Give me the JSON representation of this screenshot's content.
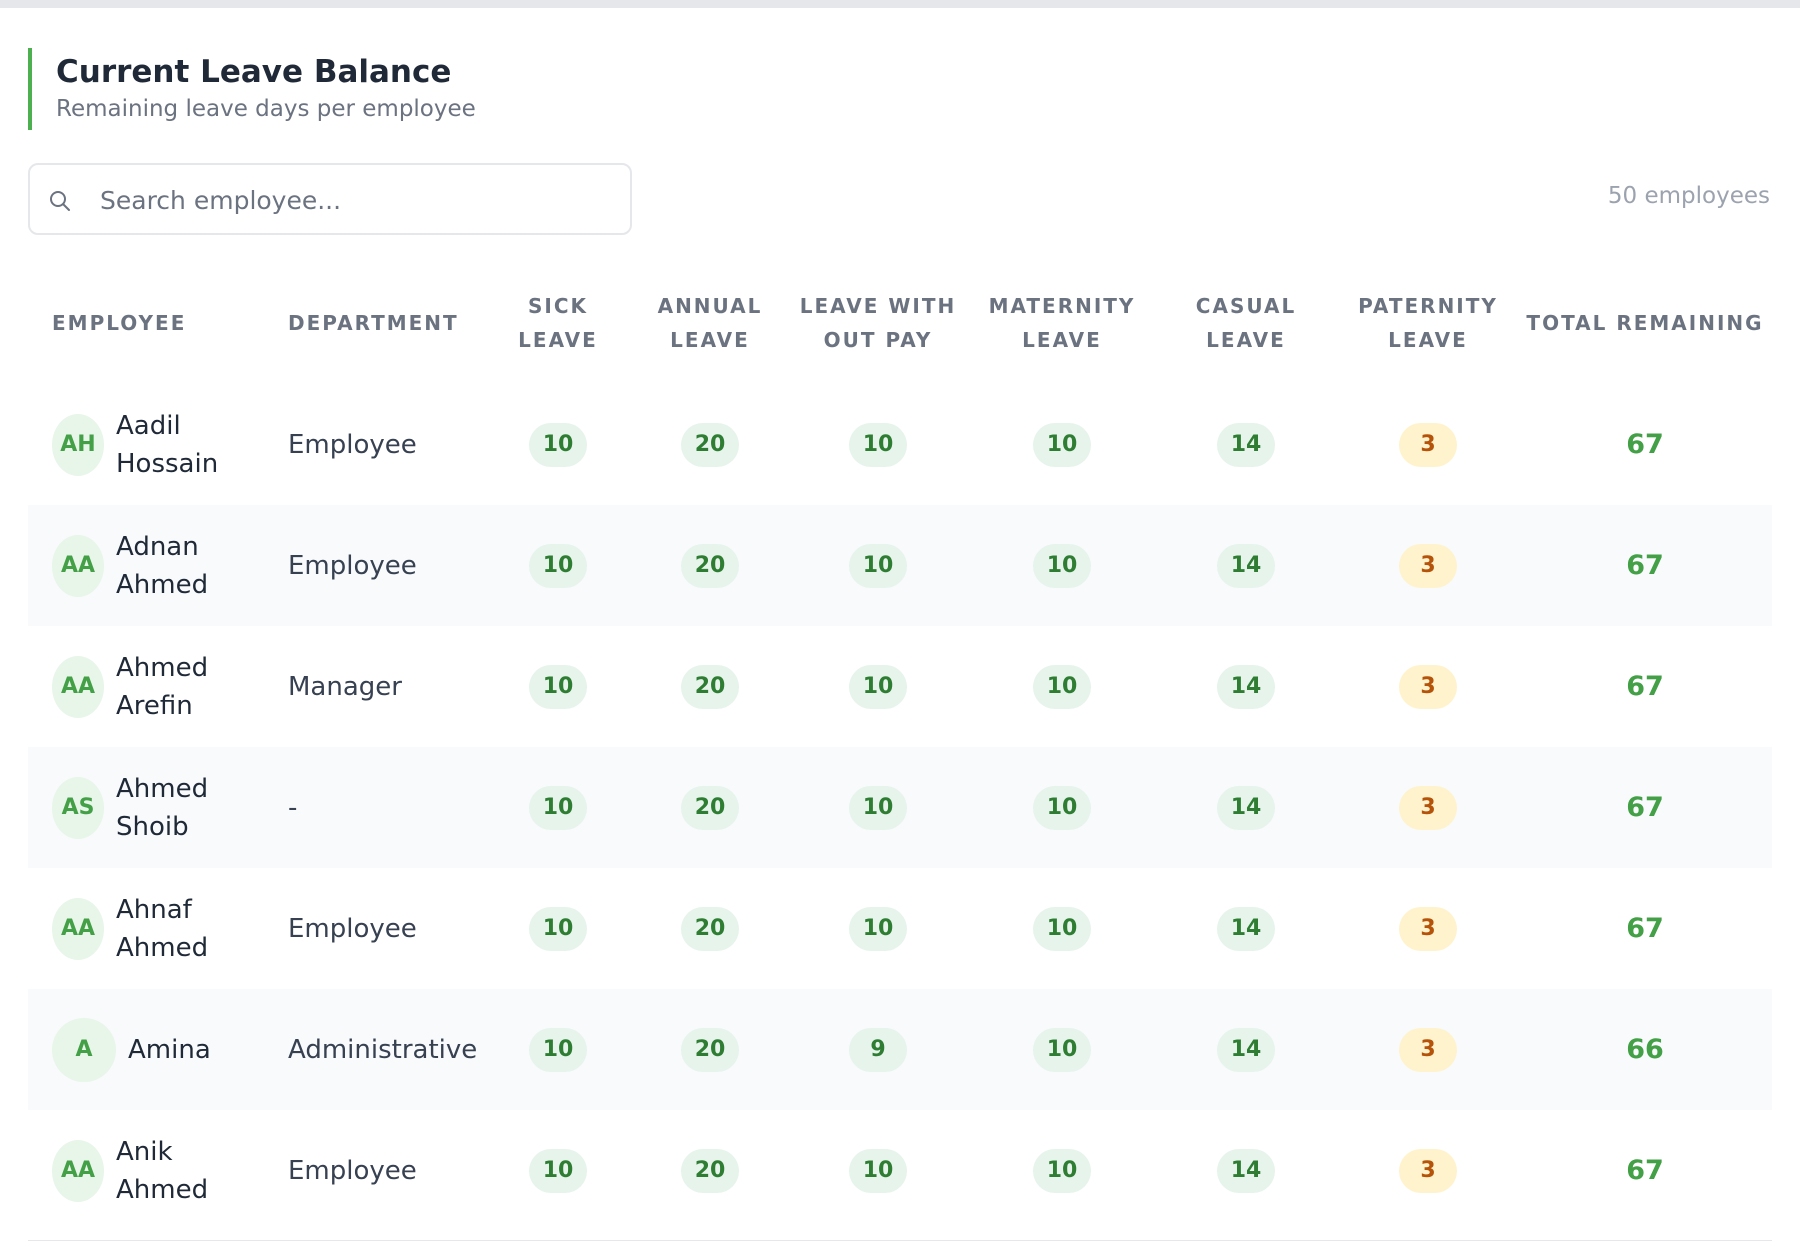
{
  "header": {
    "title": "Current Leave Balance",
    "subtitle": "Remaining leave days per employee"
  },
  "search": {
    "placeholder": "Search employee...",
    "value": ""
  },
  "employee_count": "50 employees",
  "colors": {
    "accent": "#4caf50",
    "pill_bg": "#e6f4ec",
    "pill_text": "#2e7d32",
    "warn_bg": "#fff3cd",
    "warn_text": "#b45309",
    "total_text": "#43a047"
  },
  "table": {
    "columns": [
      "EMPLOYEE",
      "DEPARTMENT",
      "SICK LEAVE",
      "ANNUAL LEAVE",
      "LEAVE WITH OUT PAY",
      "MATERNITY LEAVE",
      "CASUAL LEAVE",
      "PATERNITY LEAVE",
      "TOTAL REMAINING"
    ],
    "rows": [
      {
        "initials": "AH",
        "name": "Aadil Hossain",
        "department": "Employee",
        "sick": "10",
        "annual": "20",
        "lwop": "10",
        "maternity": "10",
        "casual": "14",
        "paternity": "3",
        "total": "67"
      },
      {
        "initials": "AA",
        "name": "Adnan Ahmed",
        "department": "Employee",
        "sick": "10",
        "annual": "20",
        "lwop": "10",
        "maternity": "10",
        "casual": "14",
        "paternity": "3",
        "total": "67"
      },
      {
        "initials": "AA",
        "name": "Ahmed Arefin",
        "department": "Manager",
        "sick": "10",
        "annual": "20",
        "lwop": "10",
        "maternity": "10",
        "casual": "14",
        "paternity": "3",
        "total": "67"
      },
      {
        "initials": "AS",
        "name": "Ahmed Shoib",
        "department": "-",
        "sick": "10",
        "annual": "20",
        "lwop": "10",
        "maternity": "10",
        "casual": "14",
        "paternity": "3",
        "total": "67"
      },
      {
        "initials": "AA",
        "name": "Ahnaf Ahmed",
        "department": "Employee",
        "sick": "10",
        "annual": "20",
        "lwop": "10",
        "maternity": "10",
        "casual": "14",
        "paternity": "3",
        "total": "67"
      },
      {
        "initials": "A",
        "name": "Amina",
        "department": "Administrative",
        "sick": "10",
        "annual": "20",
        "lwop": "9",
        "maternity": "10",
        "casual": "14",
        "paternity": "3",
        "total": "66"
      },
      {
        "initials": "AA",
        "name": "Anik Ahmed",
        "department": "Employee",
        "sick": "10",
        "annual": "20",
        "lwop": "10",
        "maternity": "10",
        "casual": "14",
        "paternity": "3",
        "total": "67"
      }
    ]
  }
}
